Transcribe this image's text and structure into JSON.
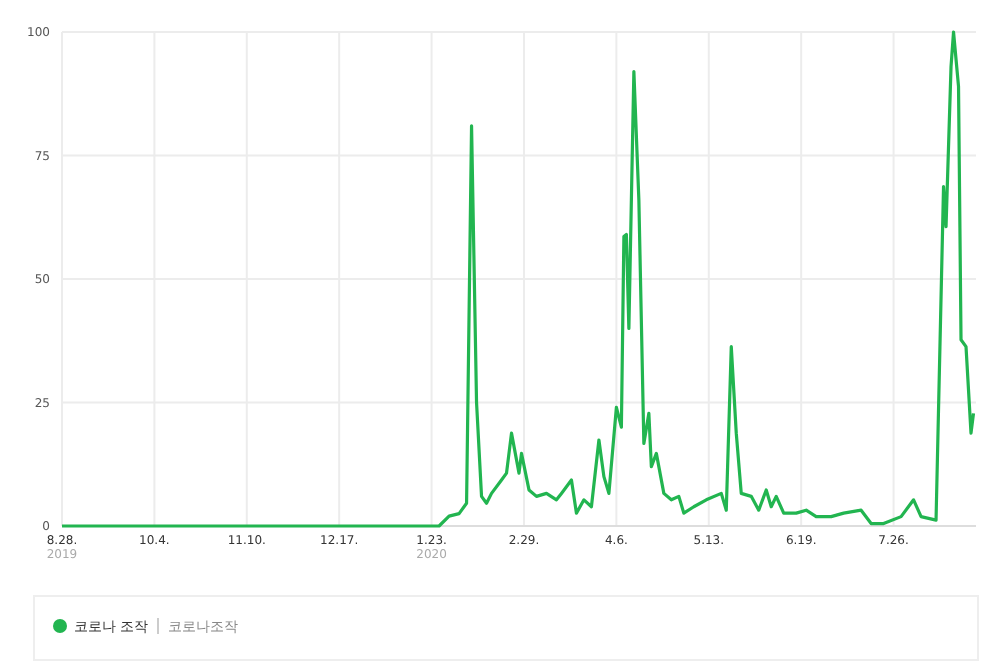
{
  "chart_data": {
    "type": "line",
    "xlim": [
      "2019-08-28",
      "2020-08-28"
    ],
    "ylim": [
      0,
      100
    ],
    "yticks": [
      0,
      25,
      50,
      75,
      100
    ],
    "xticks": [
      {
        "value": "2019-08-28",
        "label": "8.28.\n2019"
      },
      {
        "value": "2019-10-04",
        "label": "10.4."
      },
      {
        "value": "2019-11-10",
        "label": "11.10."
      },
      {
        "value": "2019-12-17",
        "label": "12.17."
      },
      {
        "value": "2020-01-23",
        "label": "1.23.\n2020"
      },
      {
        "value": "2020-02-29",
        "label": "2.29."
      },
      {
        "value": "2020-04-06",
        "label": "4.6."
      },
      {
        "value": "2020-05-13",
        "label": "5.13."
      },
      {
        "value": "2020-06-19",
        "label": "6.19."
      },
      {
        "value": "2020-07-26",
        "label": "7.26."
      }
    ],
    "grid": true,
    "legend": "bottom",
    "marker": "none",
    "line_style": "solid",
    "annotations": [
      "코로나조작"
    ],
    "x": [
      "2019-08-28",
      "2020-01-20",
      "2020-01-26",
      "2020-01-30",
      "2020-02-03",
      "2020-02-06",
      "2020-02-08",
      "2020-02-10",
      "2020-02-12",
      "2020-02-14",
      "2020-02-16",
      "2020-02-20",
      "2020-02-22",
      "2020-02-24",
      "2020-02-27",
      "2020-02-28",
      "2020-03-02",
      "2020-03-05",
      "2020-03-09",
      "2020-03-13",
      "2020-03-15",
      "2020-03-19",
      "2020-03-21",
      "2020-03-24",
      "2020-03-27",
      "2020-03-30",
      "2020-04-01",
      "2020-04-03",
      "2020-04-06",
      "2020-04-08",
      "2020-04-09",
      "2020-04-10",
      "2020-04-11",
      "2020-04-13",
      "2020-04-15",
      "2020-04-17",
      "2020-04-19",
      "2020-04-20",
      "2020-04-22",
      "2020-04-25",
      "2020-04-28",
      "2020-05-01",
      "2020-05-03",
      "2020-05-07",
      "2020-05-12",
      "2020-05-18",
      "2020-05-20",
      "2020-05-22",
      "2020-05-24",
      "2020-05-26",
      "2020-05-30",
      "2020-06-02",
      "2020-06-05",
      "2020-06-07",
      "2020-06-09",
      "2020-06-12",
      "2020-06-17",
      "2020-06-21",
      "2020-06-25",
      "2020-07-01",
      "2020-07-06",
      "2020-07-13",
      "2020-07-17",
      "2020-07-22",
      "2020-07-29",
      "2020-08-03",
      "2020-08-06",
      "2020-08-12",
      "2020-08-15",
      "2020-08-16",
      "2020-08-18",
      "2020-08-19",
      "2020-08-21",
      "2020-08-22",
      "2020-08-24",
      "2020-08-26",
      "2020-08-27"
    ],
    "series": [
      {
        "name": "코로나 조작",
        "color": "#22b550",
        "values": [
          0,
          0,
          0,
          2,
          2.5,
          4.6,
          81,
          25,
          6,
          4.6,
          6.6,
          9.3,
          10.7,
          18.8,
          10.7,
          14.7,
          7.3,
          6,
          6.6,
          5.3,
          6.6,
          9.3,
          2.6,
          5.3,
          3.9,
          17.4,
          10,
          6.6,
          24,
          20,
          58.6,
          59,
          40,
          92,
          66,
          16.7,
          22.8,
          12,
          14.7,
          6.6,
          5.3,
          6,
          2.6,
          3.9,
          5.3,
          6.6,
          3.2,
          36.3,
          18.8,
          6.6,
          6,
          3.2,
          7.3,
          3.9,
          6,
          2.6,
          2.6,
          3.2,
          1.9,
          1.9,
          2.6,
          3.2,
          0.5,
          0.5,
          1.9,
          5.3,
          1.9,
          1.2,
          68.7,
          60.6,
          93,
          100,
          89,
          37.7,
          36.3,
          18.8,
          22.8
        ]
      }
    ]
  }
}
